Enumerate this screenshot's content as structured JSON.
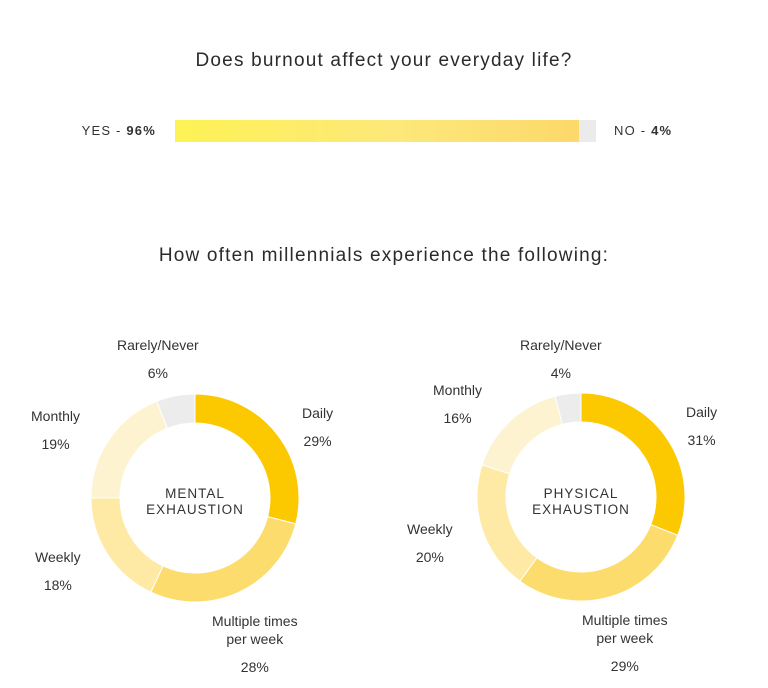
{
  "question_1": "Does burnout affect your everyday life?",
  "burnout_bar": {
    "yes_prefix": "YES -",
    "yes_pct": "96%",
    "no_prefix": "NO -",
    "no_pct": "4%",
    "yes_fraction": 0.96
  },
  "question_2": "How often millennials experience the following:",
  "chart_data": [
    {
      "type": "pie",
      "donut": true,
      "center_label": "MENTAL EXHAUSTION",
      "categories": [
        "Daily",
        "Multiple times per week",
        "Weekly",
        "Monthly",
        "Rarely/Never"
      ],
      "values": [
        29,
        28,
        18,
        19,
        6
      ],
      "value_labels": [
        "29%",
        "28%",
        "18%",
        "19%",
        "6%"
      ],
      "colors": [
        "#fcc800",
        "#fddc6e",
        "#fee9a5",
        "#fef3d0",
        "#ececec"
      ]
    },
    {
      "type": "pie",
      "donut": true,
      "center_label": "PHYSICAL EXHAUSTION",
      "categories": [
        "Daily",
        "Multiple times per week",
        "Weekly",
        "Monthly",
        "Rarely/Never"
      ],
      "values": [
        31,
        29,
        20,
        16,
        4
      ],
      "value_labels": [
        "31%",
        "29%",
        "20%",
        "16%",
        "4%"
      ],
      "colors": [
        "#fcc800",
        "#fddc6e",
        "#fee9a5",
        "#fef3d0",
        "#ececec"
      ]
    }
  ],
  "labels": {
    "mental": {
      "daily": "Daily",
      "daily_pct": "29%",
      "multiple_l1": "Multiple times",
      "multiple_l2": "per week",
      "multiple_pct": "28%",
      "weekly": "Weekly",
      "weekly_pct": "18%",
      "monthly": "Monthly",
      "monthly_pct": "19%",
      "rarely": "Rarely/Never",
      "rarely_pct": "6%",
      "center_l1": "MENTAL",
      "center_l2": "EXHAUSTION"
    },
    "physical": {
      "daily": "Daily",
      "daily_pct": "31%",
      "multiple_l1": "Multiple times",
      "multiple_l2": "per week",
      "multiple_pct": "29%",
      "weekly": "Weekly",
      "weekly_pct": "20%",
      "monthly": "Monthly",
      "monthly_pct": "16%",
      "rarely": "Rarely/Never",
      "rarely_pct": "4%",
      "center_l1": "PHYSICAL",
      "center_l2": "EXHAUSTION"
    }
  }
}
